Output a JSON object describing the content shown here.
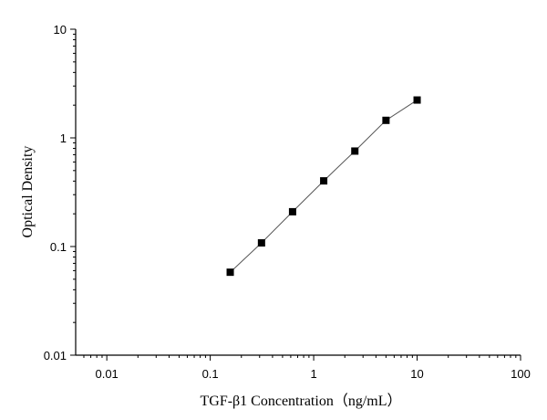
{
  "chart_data": {
    "type": "scatter",
    "title": "",
    "xlabel": "TGF-β1 Concentration（ng/mL）",
    "ylabel": "Optical Density",
    "xscale": "log",
    "yscale": "log",
    "xlim": [
      0.005,
      100
    ],
    "ylim": [
      0.01,
      10
    ],
    "x_ticks": [
      {
        "value": 0.01,
        "label": "0.01"
      },
      {
        "value": 0.1,
        "label": "0.1"
      },
      {
        "value": 1,
        "label": "1"
      },
      {
        "value": 10,
        "label": "10"
      },
      {
        "value": 100,
        "label": "100"
      }
    ],
    "y_ticks": [
      {
        "value": 0.01,
        "label": "0.01"
      },
      {
        "value": 0.1,
        "label": "0.1"
      },
      {
        "value": 1,
        "label": "1"
      },
      {
        "value": 10,
        "label": "10"
      }
    ],
    "grid": false,
    "legend": "none",
    "marker": "square",
    "connect_points": true,
    "color": "#000000",
    "series": [
      {
        "x": [
          0.156,
          0.313,
          0.625,
          1.25,
          2.5,
          5,
          10
        ],
        "y": [
          0.058,
          0.108,
          0.209,
          0.402,
          0.756,
          1.45,
          2.23
        ]
      }
    ]
  }
}
